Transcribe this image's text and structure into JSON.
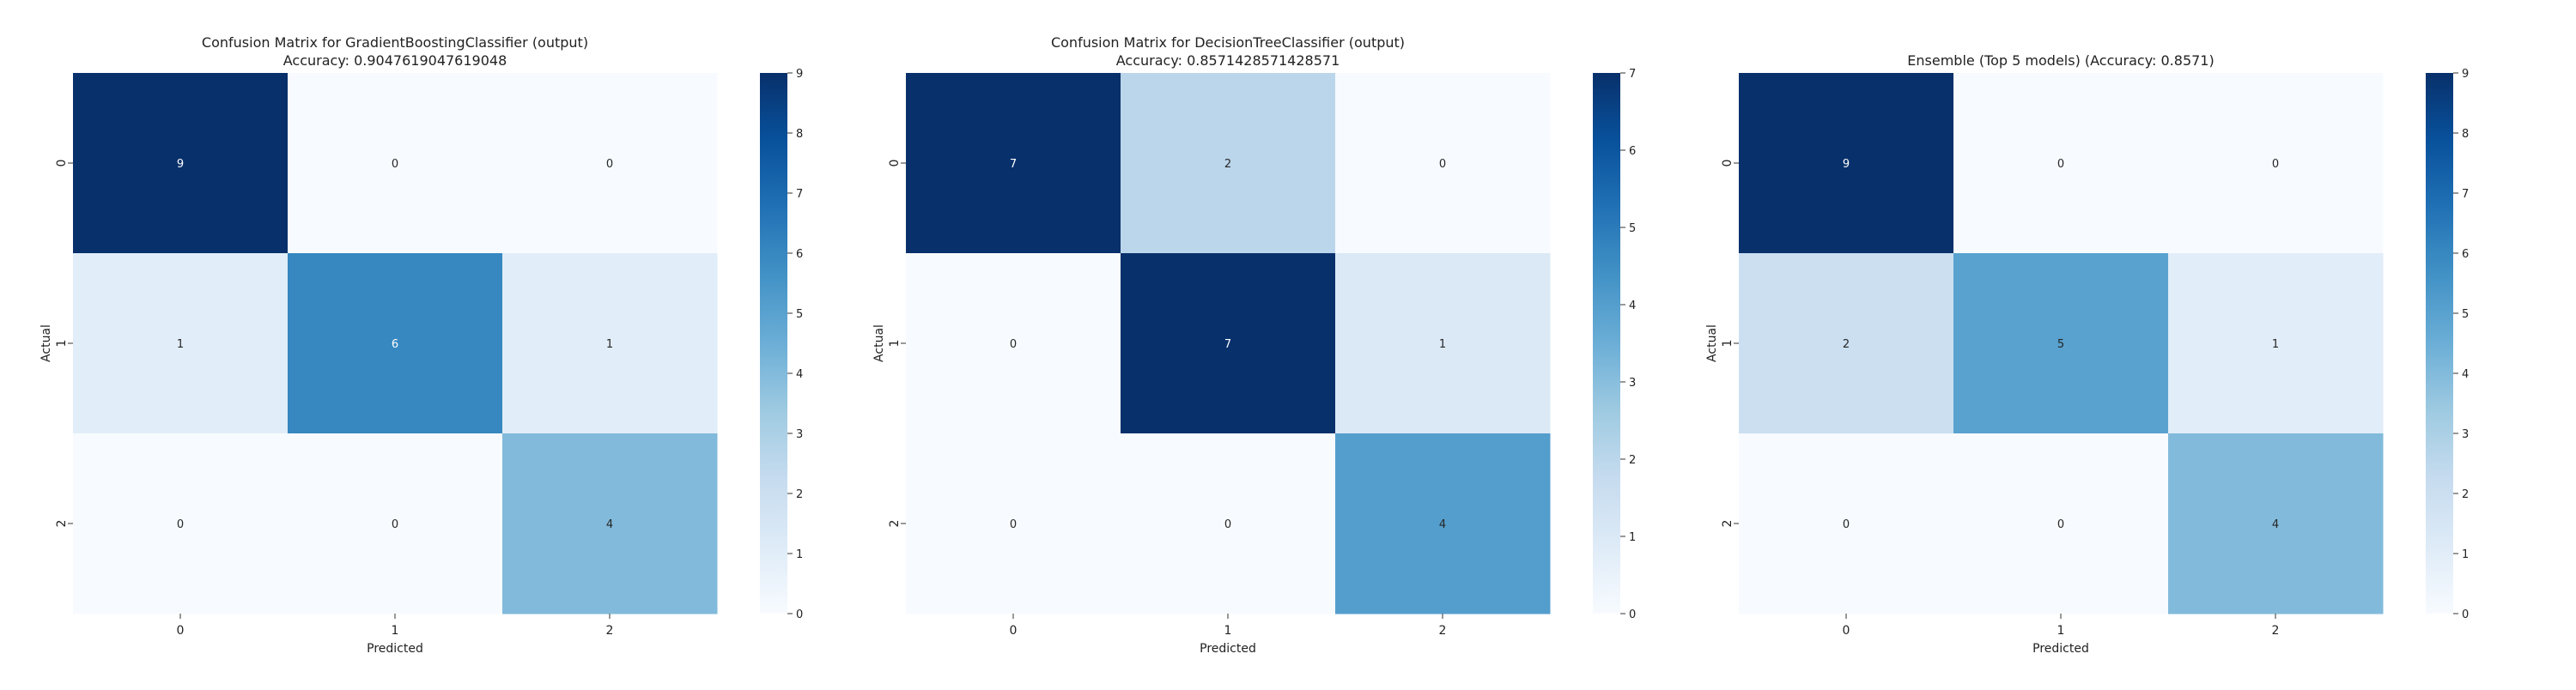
{
  "chart_data": [
    {
      "type": "heatmap",
      "title": "Confusion Matrix for GradientBoostingClassifier (output)",
      "subtitle": "Accuracy: 0.9047619047619048",
      "xlabel": "Predicted",
      "ylabel": "Actual",
      "x_ticks": [
        "0",
        "1",
        "2"
      ],
      "y_ticks": [
        "0",
        "1",
        "2"
      ],
      "matrix": [
        [
          9,
          0,
          0
        ],
        [
          1,
          6,
          1
        ],
        [
          0,
          0,
          4
        ]
      ],
      "colorbar": {
        "min": 0,
        "max": 9,
        "ticks": [
          "0",
          "1",
          "2",
          "3",
          "4",
          "5",
          "6",
          "7",
          "8",
          "9"
        ],
        "colormap": "Blues"
      }
    },
    {
      "type": "heatmap",
      "title": "Confusion Matrix for DecisionTreeClassifier (output)",
      "subtitle": "Accuracy: 0.8571428571428571",
      "xlabel": "Predicted",
      "ylabel": "Actual",
      "x_ticks": [
        "0",
        "1",
        "2"
      ],
      "y_ticks": [
        "0",
        "1",
        "2"
      ],
      "matrix": [
        [
          7,
          2,
          0
        ],
        [
          0,
          7,
          1
        ],
        [
          0,
          0,
          4
        ]
      ],
      "colorbar": {
        "min": 0,
        "max": 7,
        "ticks": [
          "0",
          "1",
          "2",
          "3",
          "4",
          "5",
          "6",
          "7"
        ],
        "colormap": "Blues"
      }
    },
    {
      "type": "heatmap",
      "title": "Ensemble (Top 5 models) (Accuracy: 0.8571)",
      "subtitle": "",
      "xlabel": "Predicted",
      "ylabel": "Actual",
      "x_ticks": [
        "0",
        "1",
        "2"
      ],
      "y_ticks": [
        "0",
        "1",
        "2"
      ],
      "matrix": [
        [
          9,
          0,
          0
        ],
        [
          2,
          5,
          1
        ],
        [
          0,
          0,
          4
        ]
      ],
      "colorbar": {
        "min": 0,
        "max": 9,
        "ticks": [
          "0",
          "1",
          "2",
          "3",
          "4",
          "5",
          "6",
          "7",
          "8",
          "9"
        ],
        "colormap": "Blues"
      }
    }
  ]
}
